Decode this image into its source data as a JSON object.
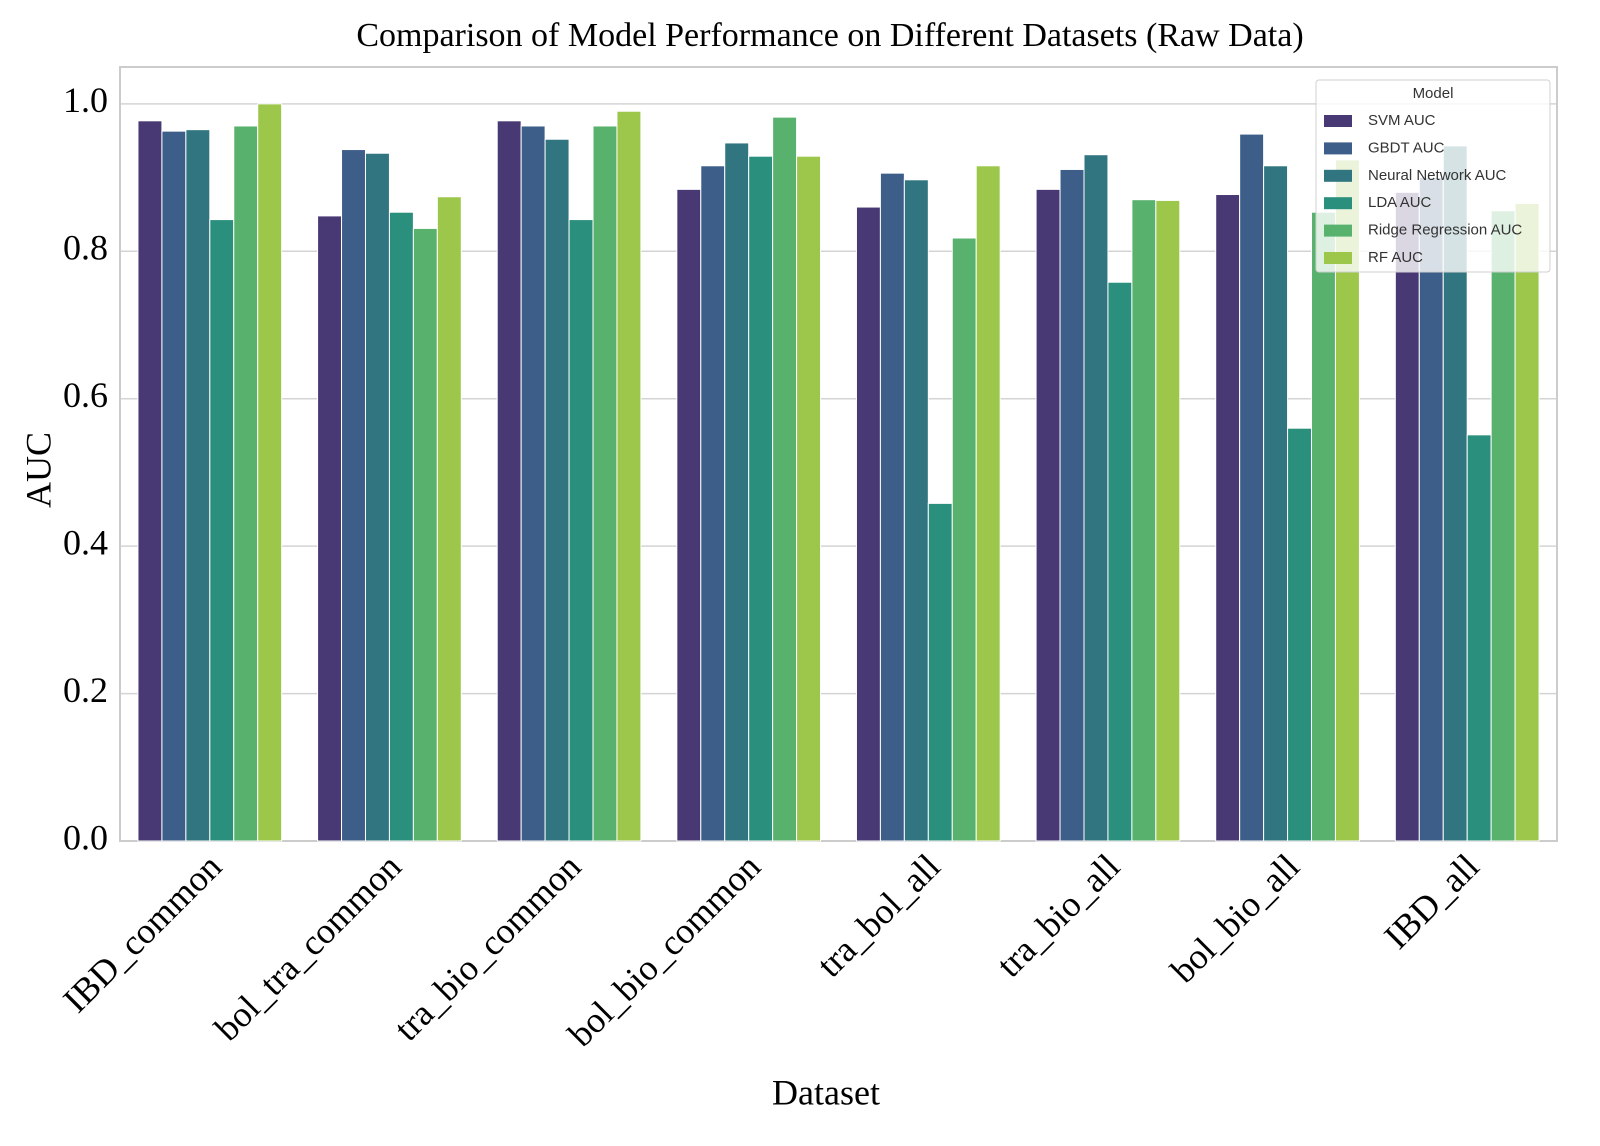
{
  "chart_data": {
    "type": "bar",
    "title": "Comparison of Model Performance on Different Datasets (Raw Data)",
    "x_label": "Dataset",
    "y_label": "AUC",
    "categories": [
      "IBD_common",
      "bol_tra_common",
      "tra_bio_common",
      "bol_bio_common",
      "tra_bol_all",
      "tra_bio_all",
      "bol_bio_all",
      "IBD_all"
    ],
    "series": [
      {
        "name": "SVM AUC",
        "color": "#483873",
        "values": [
          0.977,
          0.848,
          0.977,
          0.884,
          0.86,
          0.884,
          0.877,
          0.88
        ]
      },
      {
        "name": "GBDT AUC",
        "color": "#3d5e88",
        "values": [
          0.963,
          0.938,
          0.97,
          0.916,
          0.906,
          0.911,
          0.959,
          0.9
        ]
      },
      {
        "name": "Neural Network AUC",
        "color": "#30757f",
        "values": [
          0.965,
          0.933,
          0.952,
          0.947,
          0.897,
          0.931,
          0.916,
          0.943
        ]
      },
      {
        "name": "LDA AUC",
        "color": "#2a8f7c",
        "values": [
          0.843,
          0.853,
          0.843,
          0.929,
          0.458,
          0.758,
          0.56,
          0.551
        ]
      },
      {
        "name": "Ridge Regression AUC",
        "color": "#58b26e",
        "values": [
          0.97,
          0.831,
          0.97,
          0.982,
          0.818,
          0.87,
          0.853,
          0.855
        ]
      },
      {
        "name": "RF AUC",
        "color": "#9cc74b",
        "values": [
          1.0,
          0.874,
          0.99,
          0.929,
          0.916,
          0.869,
          0.924,
          0.865
        ]
      }
    ],
    "legend_title": "Model",
    "legend_loc": "upper right",
    "grid": true,
    "ylim": [
      0,
      1.05
    ],
    "yticks": [
      {
        "value": 0,
        "label": "0.0"
      },
      {
        "value": 0.2,
        "label": "0.2"
      },
      {
        "value": 0.4,
        "label": "0.4"
      },
      {
        "value": 0.6,
        "label": "0.6"
      },
      {
        "value": 0.8,
        "label": "0.8"
      },
      {
        "value": 1.0,
        "label": "1.0"
      }
    ]
  }
}
